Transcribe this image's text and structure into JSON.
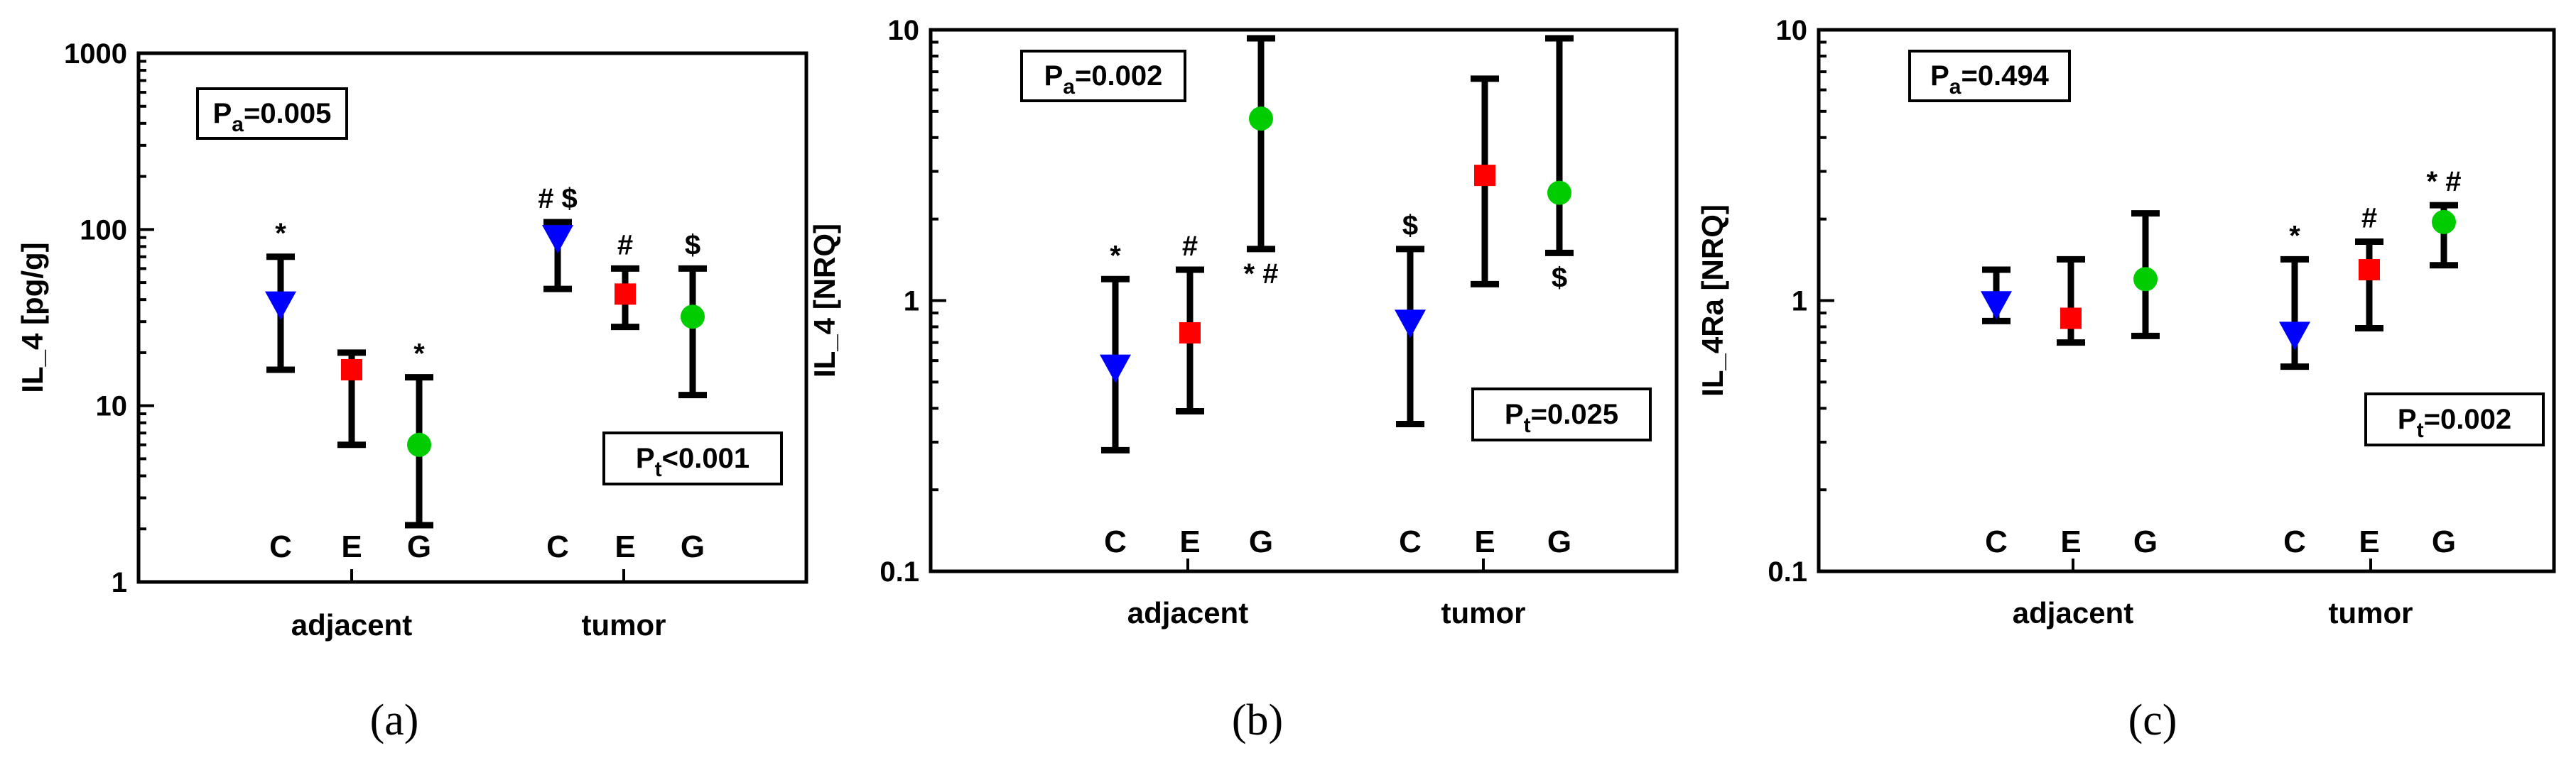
{
  "chart_data": [
    {
      "type": "scatter",
      "panel_label": "(a)",
      "ylabel": "IL_4 [pg/g]",
      "yscale": "log",
      "ylim": [
        1,
        1000
      ],
      "yticks": [
        "1",
        "10",
        "100",
        "1000"
      ],
      "yticks_val": [
        1,
        10,
        100,
        1000
      ],
      "groups": [
        "adjacent",
        "tumor"
      ],
      "categories": [
        "C",
        "E",
        "G"
      ],
      "series": [
        {
          "name": "C",
          "group": "adjacent",
          "value": 37,
          "lower": 16,
          "upper": 70,
          "marker": "triangle-down",
          "color": "#0000ff",
          "annotation": "*",
          "ann_pos": "above"
        },
        {
          "name": "E",
          "group": "adjacent",
          "value": 16,
          "lower": 6,
          "upper": 20,
          "marker": "square",
          "color": "#ff0000",
          "annotation": "",
          "ann_pos": "above"
        },
        {
          "name": "G",
          "group": "adjacent",
          "value": 6,
          "lower": 2.1,
          "upper": 14.5,
          "marker": "circle",
          "color": "#00cc00",
          "annotation": "*",
          "ann_pos": "above"
        },
        {
          "name": "C",
          "group": "tumor",
          "value": 88,
          "lower": 46,
          "upper": 110,
          "marker": "triangle-down",
          "color": "#0000ff",
          "annotation": "# $",
          "ann_pos": "above"
        },
        {
          "name": "E",
          "group": "tumor",
          "value": 43,
          "lower": 28,
          "upper": 60,
          "marker": "square",
          "color": "#ff0000",
          "annotation": "#",
          "ann_pos": "above"
        },
        {
          "name": "G",
          "group": "tumor",
          "value": 32,
          "lower": 11.5,
          "upper": 60,
          "marker": "circle",
          "color": "#00cc00",
          "annotation": "$",
          "ann_pos": "above"
        }
      ],
      "p_labels": [
        {
          "main": "P",
          "sub": "a",
          "rest": "=0.005"
        },
        {
          "main": "P",
          "sub": "t",
          "rest": "<0.001"
        }
      ]
    },
    {
      "type": "scatter",
      "panel_label": "(b)",
      "ylabel": "IL_4 [NRQ]",
      "yscale": "log",
      "ylim": [
        0.1,
        10
      ],
      "yticks": [
        "0.1",
        "1",
        "10"
      ],
      "yticks_val": [
        0.1,
        1,
        10
      ],
      "groups": [
        "adjacent",
        "tumor"
      ],
      "categories": [
        "C",
        "E",
        "G"
      ],
      "series": [
        {
          "name": "C",
          "group": "adjacent",
          "value": 0.56,
          "lower": 0.28,
          "upper": 1.2,
          "marker": "triangle-down",
          "color": "#0000ff",
          "annotation": "*",
          "ann_pos": "above"
        },
        {
          "name": "E",
          "group": "adjacent",
          "value": 0.76,
          "lower": 0.39,
          "upper": 1.3,
          "marker": "square",
          "color": "#ff0000",
          "annotation": "#",
          "ann_pos": "above"
        },
        {
          "name": "G",
          "group": "adjacent",
          "value": 4.7,
          "lower": 1.55,
          "upper": 9.3,
          "marker": "circle",
          "color": "#00cc00",
          "annotation": "* #",
          "ann_pos": "below"
        },
        {
          "name": "C",
          "group": "tumor",
          "value": 0.82,
          "lower": 0.35,
          "upper": 1.55,
          "marker": "triangle-down",
          "color": "#0000ff",
          "annotation": "$",
          "ann_pos": "above"
        },
        {
          "name": "E",
          "group": "tumor",
          "value": 2.9,
          "lower": 1.15,
          "upper": 6.6,
          "marker": "square",
          "color": "#ff0000",
          "annotation": "",
          "ann_pos": "above"
        },
        {
          "name": "G",
          "group": "tumor",
          "value": 2.5,
          "lower": 1.5,
          "upper": 9.3,
          "marker": "circle",
          "color": "#00cc00",
          "annotation": "$",
          "ann_pos": "below"
        }
      ],
      "p_labels": [
        {
          "main": "P",
          "sub": "a",
          "rest": "=0.002"
        },
        {
          "main": "P",
          "sub": "t",
          "rest": "=0.025"
        }
      ]
    },
    {
      "type": "scatter",
      "panel_label": "(c)",
      "ylabel": "IL_4Ra [NRQ]",
      "yscale": "log",
      "ylim": [
        0.1,
        10
      ],
      "yticks": [
        "0.1",
        "1",
        "10"
      ],
      "yticks_val": [
        0.1,
        1,
        10
      ],
      "groups": [
        "adjacent",
        "tumor"
      ],
      "categories": [
        "C",
        "E",
        "G"
      ],
      "series": [
        {
          "name": "C",
          "group": "adjacent",
          "value": 0.96,
          "lower": 0.84,
          "upper": 1.3,
          "marker": "triangle-down",
          "color": "#0000ff",
          "annotation": "",
          "ann_pos": "above"
        },
        {
          "name": "E",
          "group": "adjacent",
          "value": 0.86,
          "lower": 0.7,
          "upper": 1.42,
          "marker": "square",
          "color": "#ff0000",
          "annotation": "",
          "ann_pos": "above"
        },
        {
          "name": "G",
          "group": "adjacent",
          "value": 1.2,
          "lower": 0.74,
          "upper": 2.1,
          "marker": "circle",
          "color": "#00cc00",
          "annotation": "",
          "ann_pos": "above"
        },
        {
          "name": "C",
          "group": "tumor",
          "value": 0.74,
          "lower": 0.57,
          "upper": 1.42,
          "marker": "triangle-down",
          "color": "#0000ff",
          "annotation": "*",
          "ann_pos": "above"
        },
        {
          "name": "E",
          "group": "tumor",
          "value": 1.3,
          "lower": 0.79,
          "upper": 1.65,
          "marker": "square",
          "color": "#ff0000",
          "annotation": "#",
          "ann_pos": "above"
        },
        {
          "name": "G",
          "group": "tumor",
          "value": 1.95,
          "lower": 1.35,
          "upper": 2.25,
          "marker": "circle",
          "color": "#00cc00",
          "annotation": "* #",
          "ann_pos": "above"
        }
      ],
      "p_labels": [
        {
          "main": "P",
          "sub": "a",
          "rest": "=0.494"
        },
        {
          "main": "P",
          "sub": "t",
          "rest": "=0.002"
        }
      ]
    }
  ]
}
